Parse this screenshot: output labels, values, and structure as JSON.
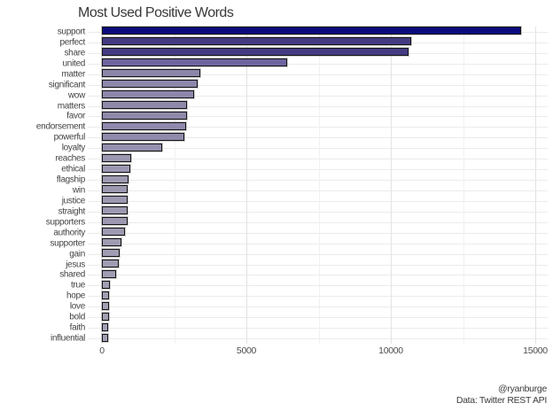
{
  "title": "Most Used Positive Words",
  "caption": {
    "line1": "@ryanburge",
    "line2": "Data: Twitter REST API"
  },
  "colors": {
    "background": "#ffffff",
    "grid_major": "#e3e3e3",
    "grid_minor": "#f1f1f1",
    "grid_category": "#ebebeb",
    "bar_outline": "#141414",
    "axis_text": "#4d4d4d",
    "label_text": "#424242",
    "title_text": "#383838",
    "gradient_low": "#a39fb4",
    "gradient_high": "#0b0b7e"
  },
  "chart_data": {
    "type": "bar",
    "orientation": "horizontal",
    "title": "Most Used Positive Words",
    "xlabel": "",
    "ylabel": "",
    "xlim": [
      0,
      15000
    ],
    "x_major_ticks": [
      0,
      5000,
      10000,
      15000
    ],
    "x_tick_labels": [
      "0",
      "5000",
      "10000",
      "15000"
    ],
    "x_minor_ticks": [
      2500,
      7500,
      12500
    ],
    "grid": true,
    "legend": false,
    "categories": [
      "support",
      "perfect",
      "share",
      "united",
      "matter",
      "significant",
      "wow",
      "matters",
      "favor",
      "endorsement",
      "powerful",
      "loyalty",
      "reaches",
      "ethical",
      "flagship",
      "win",
      "justice",
      "straight",
      "supporters",
      "authority",
      "supporter",
      "gain",
      "jesus",
      "shared",
      "true",
      "hope",
      "love",
      "bold",
      "faith",
      "influential"
    ],
    "values": [
      14500,
      10700,
      10600,
      6400,
      3400,
      3300,
      3200,
      2950,
      2950,
      2900,
      2850,
      2100,
      1000,
      980,
      920,
      900,
      900,
      900,
      880,
      800,
      690,
      610,
      590,
      500,
      280,
      250,
      240,
      235,
      210,
      230
    ],
    "bar_colors": [
      "#0b0b7e",
      "#443a82",
      "#453b83",
      "#6f64a0",
      "#8c86aa",
      "#8d87aa",
      "#8e87ab",
      "#8f89ab",
      "#8f89ab",
      "#9089ac",
      "#908aac",
      "#9590ae",
      "#9c98b1",
      "#9d98b1",
      "#9d99b1",
      "#9d99b1",
      "#9d99b1",
      "#9d99b1",
      "#9e99b1",
      "#9e9ab2",
      "#9f9bb2",
      "#a09cb2",
      "#a09cb2",
      "#a19db3",
      "#a29eb3",
      "#a39eb4",
      "#a39fb4",
      "#a39fb4",
      "#a39fb4",
      "#a39fb4"
    ]
  }
}
